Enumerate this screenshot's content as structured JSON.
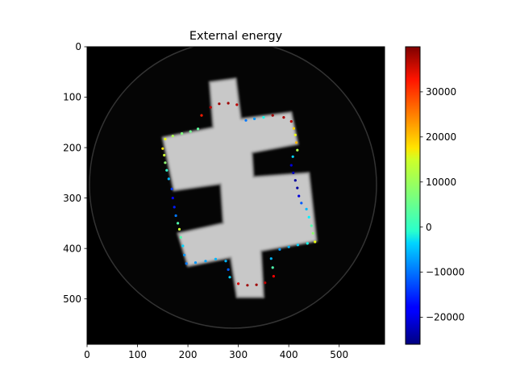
{
  "chart_data": {
    "type": "heatmap",
    "title": "External energy",
    "xlabel": "",
    "ylabel": "",
    "image_extent": [
      0,
      590,
      590,
      0
    ],
    "xlim": [
      0,
      590
    ],
    "ylim": [
      590,
      0
    ],
    "x_ticks": [
      0,
      100,
      200,
      300,
      400,
      500
    ],
    "y_ticks": [
      0,
      100,
      200,
      300,
      400,
      500
    ],
    "grid": false,
    "background_image": "grayscale CT slice of a double-cross shaped object inside a faint circular boundary",
    "image_colors": {
      "background": "#000000",
      "object": "#c8c8c8",
      "object_edge": "#8a8a8a",
      "ring": "#3a3a3a"
    },
    "colormap": "jet",
    "colorbar": {
      "vmin": -26000,
      "vmax": 40000,
      "ticks": [
        -20000,
        -10000,
        0,
        10000,
        20000,
        30000
      ],
      "tick_labels": [
        "−20000",
        "−10000",
        "0",
        "10000",
        "20000",
        "30000"
      ]
    },
    "points": [
      {
        "x": 227,
        "y": 136,
        "v": 30000
      },
      {
        "x": 245,
        "y": 120,
        "v": 36000
      },
      {
        "x": 262,
        "y": 113,
        "v": 38000
      },
      {
        "x": 280,
        "y": 112,
        "v": 38000
      },
      {
        "x": 297,
        "y": 115,
        "v": 36000
      },
      {
        "x": 220,
        "y": 163,
        "v": 5000
      },
      {
        "x": 205,
        "y": 168,
        "v": 6000
      },
      {
        "x": 188,
        "y": 172,
        "v": 7000
      },
      {
        "x": 170,
        "y": 177,
        "v": 10000
      },
      {
        "x": 155,
        "y": 183,
        "v": 14000
      },
      {
        "x": 150,
        "y": 202,
        "v": 17000
      },
      {
        "x": 153,
        "y": 215,
        "v": 12000
      },
      {
        "x": 155,
        "y": 230,
        "v": 8000
      },
      {
        "x": 158,
        "y": 245,
        "v": 2000
      },
      {
        "x": 162,
        "y": 262,
        "v": -6000
      },
      {
        "x": 168,
        "y": 282,
        "v": -14000
      },
      {
        "x": 170,
        "y": 300,
        "v": -18000
      },
      {
        "x": 173,
        "y": 318,
        "v": -16000
      },
      {
        "x": 176,
        "y": 335,
        "v": -10000
      },
      {
        "x": 180,
        "y": 350,
        "v": 4000
      },
      {
        "x": 183,
        "y": 362,
        "v": 12000
      },
      {
        "x": 186,
        "y": 378,
        "v": 4000
      },
      {
        "x": 190,
        "y": 395,
        "v": -4000
      },
      {
        "x": 193,
        "y": 413,
        "v": -8000
      },
      {
        "x": 197,
        "y": 430,
        "v": -10000
      },
      {
        "x": 215,
        "y": 428,
        "v": -8000
      },
      {
        "x": 235,
        "y": 425,
        "v": -7000
      },
      {
        "x": 255,
        "y": 421,
        "v": -6000
      },
      {
        "x": 275,
        "y": 425,
        "v": -6000
      },
      {
        "x": 280,
        "y": 442,
        "v": -12000
      },
      {
        "x": 283,
        "y": 457,
        "v": -4000
      },
      {
        "x": 300,
        "y": 470,
        "v": 34000
      },
      {
        "x": 318,
        "y": 473,
        "v": 38000
      },
      {
        "x": 336,
        "y": 472,
        "v": 38000
      },
      {
        "x": 353,
        "y": 468,
        "v": 36000
      },
      {
        "x": 370,
        "y": 455,
        "v": 32000
      },
      {
        "x": 368,
        "y": 438,
        "v": 4000
      },
      {
        "x": 365,
        "y": 420,
        "v": -6000
      },
      {
        "x": 382,
        "y": 402,
        "v": -8000
      },
      {
        "x": 400,
        "y": 397,
        "v": -6000
      },
      {
        "x": 418,
        "y": 393,
        "v": -4000
      },
      {
        "x": 437,
        "y": 390,
        "v": 0
      },
      {
        "x": 452,
        "y": 387,
        "v": 14000
      },
      {
        "x": 448,
        "y": 370,
        "v": 8000
      },
      {
        "x": 445,
        "y": 355,
        "v": 4000
      },
      {
        "x": 440,
        "y": 338,
        "v": -2000
      },
      {
        "x": 435,
        "y": 322,
        "v": -6000
      },
      {
        "x": 425,
        "y": 310,
        "v": -12000
      },
      {
        "x": 420,
        "y": 296,
        "v": -20000
      },
      {
        "x": 417,
        "y": 280,
        "v": -24000
      },
      {
        "x": 413,
        "y": 265,
        "v": -24000
      },
      {
        "x": 409,
        "y": 250,
        "v": -22000
      },
      {
        "x": 405,
        "y": 235,
        "v": -20000
      },
      {
        "x": 408,
        "y": 218,
        "v": -4000
      },
      {
        "x": 417,
        "y": 205,
        "v": 10000
      },
      {
        "x": 415,
        "y": 190,
        "v": 20000
      },
      {
        "x": 413,
        "y": 175,
        "v": 14000
      },
      {
        "x": 410,
        "y": 162,
        "v": 18000
      },
      {
        "x": 405,
        "y": 148,
        "v": 36000
      },
      {
        "x": 390,
        "y": 140,
        "v": 37000
      },
      {
        "x": 368,
        "y": 136,
        "v": 38000
      },
      {
        "x": 350,
        "y": 140,
        "v": 0
      },
      {
        "x": 332,
        "y": 143,
        "v": -8000
      },
      {
        "x": 315,
        "y": 146,
        "v": -10000
      }
    ]
  }
}
